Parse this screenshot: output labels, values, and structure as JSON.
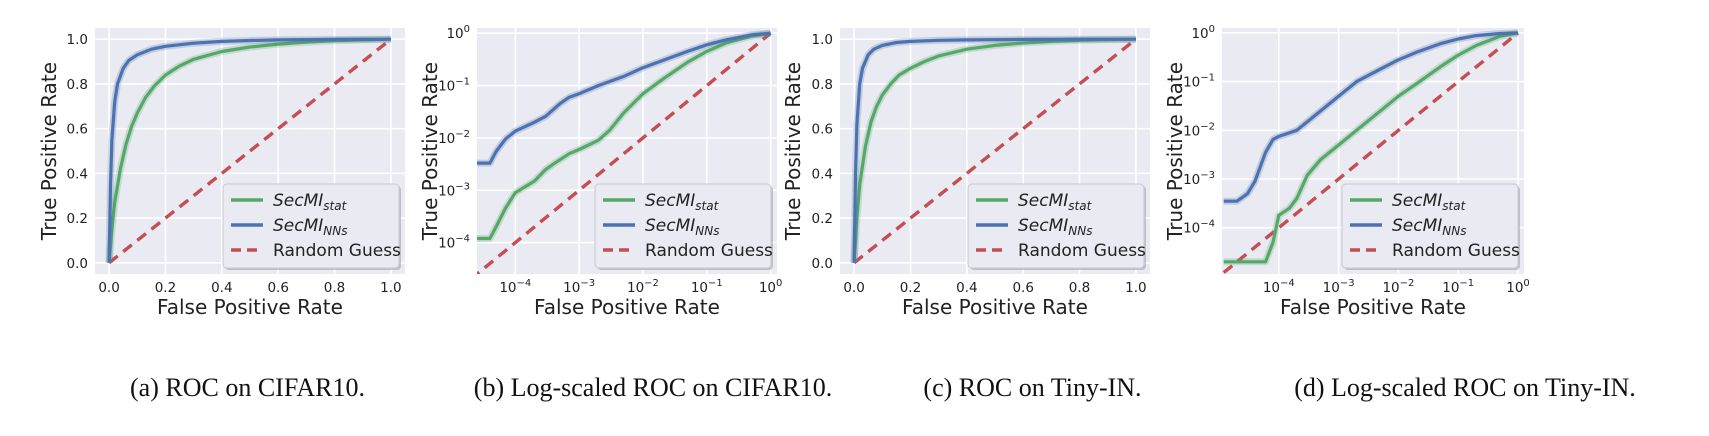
{
  "colors": {
    "stat": "#55a868",
    "nns": "#4c72b0",
    "random": "#c44e52",
    "panel_bg": "#eaeaf2",
    "grid": "#ffffff"
  },
  "legend": {
    "stat_base": "SecMI",
    "stat_sub": "stat",
    "nns_base": "SecMI",
    "nns_sub": "NNs",
    "random": "Random Guess"
  },
  "chart_data": [
    {
      "id": "a",
      "type": "line",
      "scale": "linear",
      "title": "",
      "caption": "(a) ROC on CIFAR10.",
      "xlabel": "False Positive Rate",
      "ylabel": "True Positive Rate",
      "xlim": [
        -0.05,
        1.05
      ],
      "ylim": [
        -0.05,
        1.05
      ],
      "xticks": [
        0.0,
        0.2,
        0.4,
        0.6,
        0.8,
        1.0
      ],
      "yticks": [
        0.0,
        0.2,
        0.4,
        0.6,
        0.8,
        1.0
      ],
      "xtick_labels": [
        "0.0",
        "0.2",
        "0.4",
        "0.6",
        "0.8",
        "1.0"
      ],
      "ytick_labels": [
        "0.0",
        "0.2",
        "0.4",
        "0.6",
        "0.8",
        "1.0"
      ],
      "series": [
        {
          "name": "SecMI_stat",
          "key": "stat",
          "x": [
            0,
            0.01,
            0.02,
            0.04,
            0.06,
            0.08,
            0.1,
            0.13,
            0.16,
            0.2,
            0.25,
            0.3,
            0.4,
            0.5,
            0.6,
            0.7,
            0.8,
            0.9,
            1.0
          ],
          "y": [
            0,
            0.15,
            0.27,
            0.42,
            0.53,
            0.61,
            0.67,
            0.74,
            0.79,
            0.84,
            0.88,
            0.91,
            0.945,
            0.965,
            0.978,
            0.987,
            0.993,
            0.997,
            1.0
          ]
        },
        {
          "name": "SecMI_NNs",
          "key": "nns",
          "x": [
            0,
            0.005,
            0.01,
            0.02,
            0.03,
            0.05,
            0.07,
            0.1,
            0.15,
            0.2,
            0.3,
            0.4,
            0.5,
            0.6,
            0.8,
            1.0
          ],
          "y": [
            0,
            0.35,
            0.55,
            0.72,
            0.8,
            0.87,
            0.905,
            0.93,
            0.955,
            0.968,
            0.982,
            0.99,
            0.994,
            0.997,
            0.999,
            1.0
          ]
        },
        {
          "name": "Random Guess",
          "key": "random",
          "x": [
            0,
            1
          ],
          "y": [
            0,
            1
          ]
        }
      ]
    },
    {
      "id": "b",
      "type": "line",
      "scale": "log",
      "title": "",
      "caption": "(b) Log-scaled ROC on CIFAR10.",
      "xlabel": "False Positive Rate",
      "ylabel": "True Positive Rate",
      "xlim_log10": [
        -4.6,
        0.1
      ],
      "ylim_log10": [
        -4.6,
        0.1
      ],
      "xticks_exp": [
        -4,
        -3,
        -2,
        -1,
        0
      ],
      "yticks_exp": [
        -4,
        -3,
        -2,
        -1,
        0
      ],
      "series": [
        {
          "name": "SecMI_stat",
          "key": "stat",
          "x": [
            2e-05,
            3e-05,
            4e-05,
            5e-05,
            7e-05,
            0.0001,
            0.0002,
            0.0003,
            0.0004,
            0.0007,
            0.001,
            0.002,
            0.003,
            0.005,
            0.01,
            0.02,
            0.05,
            0.1,
            0.2,
            0.5,
            1.0
          ],
          "y": [
            0.00012,
            0.00012,
            0.00012,
            0.0002,
            0.00045,
            0.0009,
            0.0015,
            0.0025,
            0.0032,
            0.005,
            0.006,
            0.009,
            0.014,
            0.03,
            0.07,
            0.13,
            0.28,
            0.45,
            0.65,
            0.88,
            1.0
          ]
        },
        {
          "name": "SecMI_NNs",
          "key": "nns",
          "x": [
            2e-05,
            3e-05,
            4e-05,
            5e-05,
            7e-05,
            0.0001,
            0.0002,
            0.0003,
            0.0005,
            0.0007,
            0.001,
            0.002,
            0.005,
            0.01,
            0.02,
            0.05,
            0.1,
            0.2,
            0.5,
            1.0
          ],
          "y": [
            0.0033,
            0.0033,
            0.0033,
            0.0055,
            0.0095,
            0.0135,
            0.02,
            0.026,
            0.045,
            0.06,
            0.07,
            0.1,
            0.15,
            0.22,
            0.3,
            0.45,
            0.6,
            0.75,
            0.93,
            1.0
          ]
        },
        {
          "name": "Random Guess",
          "key": "random",
          "x": [
            2e-05,
            1.0
          ],
          "y": [
            2e-05,
            1.0
          ]
        }
      ]
    },
    {
      "id": "c",
      "type": "line",
      "scale": "linear",
      "title": "",
      "caption": "(c) ROC on Tiny-IN.",
      "xlabel": "False Positive Rate",
      "ylabel": "True Positive Rate",
      "xlim": [
        -0.05,
        1.05
      ],
      "ylim": [
        -0.05,
        1.05
      ],
      "xticks": [
        0.0,
        0.2,
        0.4,
        0.6,
        0.8,
        1.0
      ],
      "yticks": [
        0.0,
        0.2,
        0.4,
        0.6,
        0.8,
        1.0
      ],
      "xtick_labels": [
        "0.0",
        "0.2",
        "0.4",
        "0.6",
        "0.8",
        "1.0"
      ],
      "ytick_labels": [
        "0.0",
        "0.2",
        "0.4",
        "0.6",
        "0.8",
        "1.0"
      ],
      "series": [
        {
          "name": "SecMI_stat",
          "key": "stat",
          "x": [
            0,
            0.01,
            0.02,
            0.04,
            0.06,
            0.08,
            0.1,
            0.13,
            0.16,
            0.2,
            0.25,
            0.3,
            0.4,
            0.5,
            0.6,
            0.7,
            0.8,
            0.9,
            1.0
          ],
          "y": [
            0,
            0.2,
            0.35,
            0.52,
            0.63,
            0.7,
            0.75,
            0.8,
            0.84,
            0.87,
            0.9,
            0.925,
            0.955,
            0.972,
            0.983,
            0.99,
            0.995,
            0.998,
            1.0
          ]
        },
        {
          "name": "SecMI_NNs",
          "key": "nns",
          "x": [
            0,
            0.005,
            0.01,
            0.02,
            0.03,
            0.05,
            0.07,
            0.1,
            0.15,
            0.2,
            0.3,
            0.4,
            0.6,
            0.8,
            1.0
          ],
          "y": [
            0,
            0.4,
            0.62,
            0.8,
            0.87,
            0.93,
            0.955,
            0.972,
            0.985,
            0.99,
            0.995,
            0.997,
            0.999,
            1.0,
            1.0
          ]
        },
        {
          "name": "Random Guess",
          "key": "random",
          "x": [
            0,
            1
          ],
          "y": [
            0,
            1
          ]
        }
      ]
    },
    {
      "id": "d",
      "type": "line",
      "scale": "log",
      "title": "",
      "caption": "(d) Log-scaled ROC on Tiny-IN.",
      "xlabel": "False Positive Rate",
      "ylabel": "True Positive Rate",
      "xlim_log10": [
        -4.95,
        0.1
      ],
      "ylim_log10": [
        -4.95,
        0.1
      ],
      "xticks_exp": [
        -4,
        -3,
        -2,
        -1,
        0
      ],
      "yticks_exp": [
        -4,
        -3,
        -2,
        -1,
        0
      ],
      "series": [
        {
          "name": "SecMI_stat",
          "key": "stat",
          "x": [
            1.2e-05,
            2e-05,
            4e-05,
            6e-05,
            8e-05,
            0.0001,
            0.00015,
            0.0002,
            0.0003,
            0.0005,
            0.001,
            0.002,
            0.005,
            0.01,
            0.02,
            0.05,
            0.1,
            0.2,
            0.5,
            1.0
          ],
          "y": [
            2e-05,
            2e-05,
            2e-05,
            2e-05,
            5e-05,
            0.00018,
            0.00025,
            0.0004,
            0.0012,
            0.0025,
            0.005,
            0.01,
            0.025,
            0.05,
            0.09,
            0.2,
            0.35,
            0.55,
            0.85,
            1.0
          ]
        },
        {
          "name": "SecMI_NNs",
          "key": "nns",
          "x": [
            1.2e-05,
            2e-05,
            3e-05,
            4e-05,
            6e-05,
            8e-05,
            0.0001,
            0.0002,
            0.0003,
            0.0005,
            0.001,
            0.002,
            0.005,
            0.01,
            0.02,
            0.05,
            0.1,
            0.2,
            0.5,
            1.0
          ],
          "y": [
            0.00035,
            0.00035,
            0.0005,
            0.0009,
            0.0035,
            0.0065,
            0.0075,
            0.01,
            0.015,
            0.025,
            0.05,
            0.1,
            0.18,
            0.28,
            0.4,
            0.6,
            0.75,
            0.88,
            0.97,
            1.0
          ]
        },
        {
          "name": "Random Guess",
          "key": "random",
          "x": [
            1.2e-05,
            1.0
          ],
          "y": [
            1.2e-05,
            1.0
          ]
        }
      ]
    }
  ]
}
